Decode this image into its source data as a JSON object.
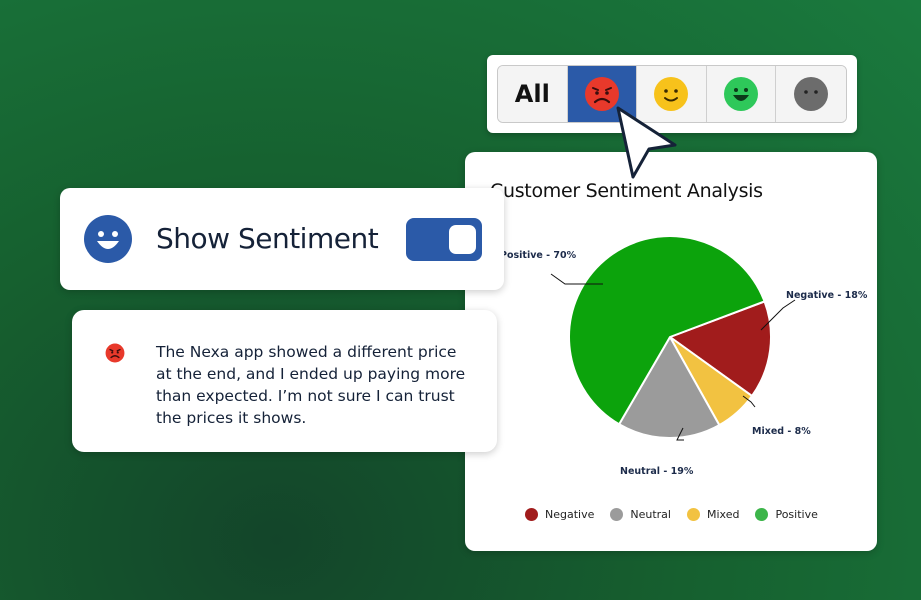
{
  "filter_bar": {
    "all_label": "All",
    "options": [
      {
        "name": "negative",
        "icon": "angry-face-icon",
        "color": "#e8392b",
        "selected": true
      },
      {
        "name": "mixed",
        "icon": "smile-face-icon",
        "color": "#f7c21b",
        "selected": false
      },
      {
        "name": "positive",
        "icon": "grin-face-icon",
        "color": "#2ec85a",
        "selected": false
      },
      {
        "name": "neutral",
        "icon": "neutral-face-icon",
        "color": "#6c6c6c",
        "selected": false
      }
    ],
    "active_color": "#2b5aa8"
  },
  "toggle": {
    "label": "Show Sentiment",
    "enabled": true,
    "color": "#2b5aa8"
  },
  "review": {
    "sentiment_icon": "angry-face-icon",
    "sentiment_color": "#e8392b",
    "text": "The Nexa app showed a different price at the end, and I ended up paying more than expected. I’m not sure I can trust the prices it shows."
  },
  "chart_data": {
    "type": "pie",
    "title": "Customer Sentiment Analysis",
    "slices": [
      {
        "name": "Negative",
        "value": 18,
        "label": "Negative - 18%",
        "color": "#a11c1c"
      },
      {
        "name": "Mixed",
        "value": 8,
        "label": "Mixed - 8%",
        "color": "#f2c241"
      },
      {
        "name": "Neutral",
        "value": 19,
        "label": "Neutral - 19%",
        "color": "#9b9b9b"
      },
      {
        "name": "Positive",
        "value": 70,
        "label": "Positive - 70%",
        "color": "#0ca30c"
      }
    ],
    "legend": [
      {
        "name": "Negative",
        "color": "#a11c1c"
      },
      {
        "name": "Neutral",
        "color": "#9b9b9b"
      },
      {
        "name": "Mixed",
        "color": "#f2c241"
      },
      {
        "name": "Positive",
        "color": "#3cb54a"
      }
    ],
    "legend_position": "bottom"
  }
}
